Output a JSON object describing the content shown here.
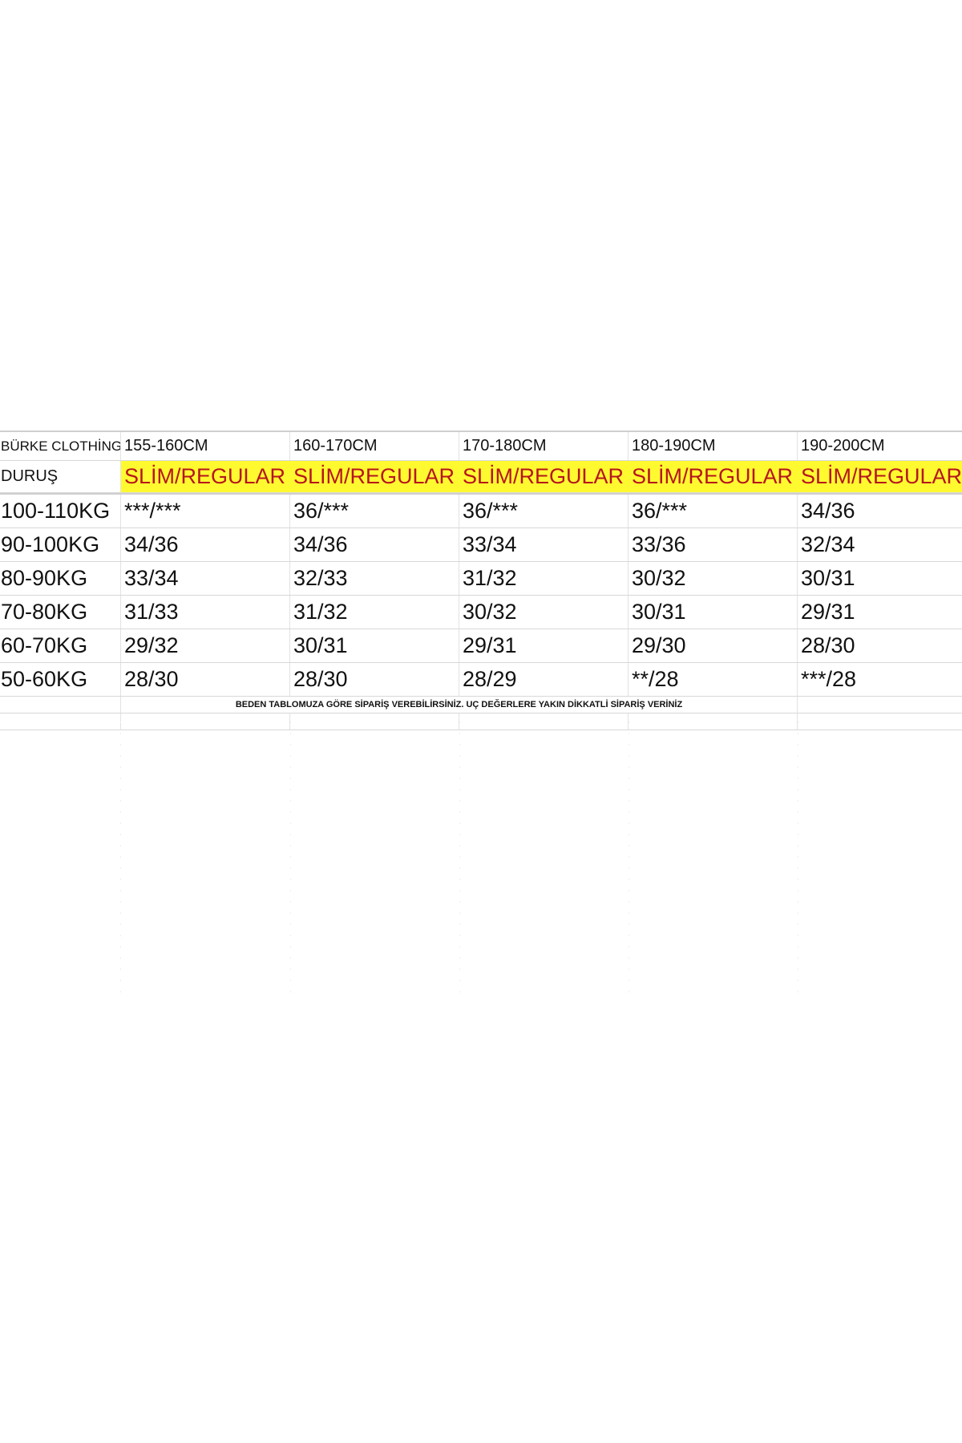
{
  "table": {
    "corner_label": "BÜRKE CLOTHİNG",
    "heights": [
      "155-160CM",
      "160-170CM",
      "170-180CM",
      "180-190CM",
      "190-200CM"
    ],
    "fit_label": "DURUŞ",
    "fits": [
      "SLİM/REGULAR",
      "SLİM/REGULAR",
      "SLİM/REGULAR",
      "SLİM/REGULAR",
      "SLİM/REGULAR"
    ],
    "rows": [
      {
        "weight": "100-110KG",
        "sizes": [
          "***/***",
          "36/***",
          "36/***",
          "36/***",
          "34/36"
        ]
      },
      {
        "weight": "90-100KG",
        "sizes": [
          "34/36",
          "34/36",
          "33/34",
          "33/36",
          "32/34"
        ]
      },
      {
        "weight": "80-90KG",
        "sizes": [
          "33/34",
          "32/33",
          "31/32",
          "30/32",
          "30/31"
        ]
      },
      {
        "weight": "70-80KG",
        "sizes": [
          "31/33",
          "31/32",
          "30/32",
          "30/31",
          "29/31"
        ]
      },
      {
        "weight": "60-70KG",
        "sizes": [
          "29/32",
          "30/31",
          "29/31",
          "29/30",
          "28/30"
        ]
      },
      {
        "weight": "50-60KG",
        "sizes": [
          "28/30",
          "28/30",
          "28/29",
          "**/28",
          "***/28"
        ]
      }
    ],
    "note": "BEDEN TABLOMUZA GÖRE SİPARİŞ VEREBİLİRSİNİZ. UÇ DEĞERLERE YAKIN DİKKATLİ SİPARİŞ VERİNİZ",
    "highlight_color": "#fff930",
    "fit_text_color": "#b5161c"
  }
}
